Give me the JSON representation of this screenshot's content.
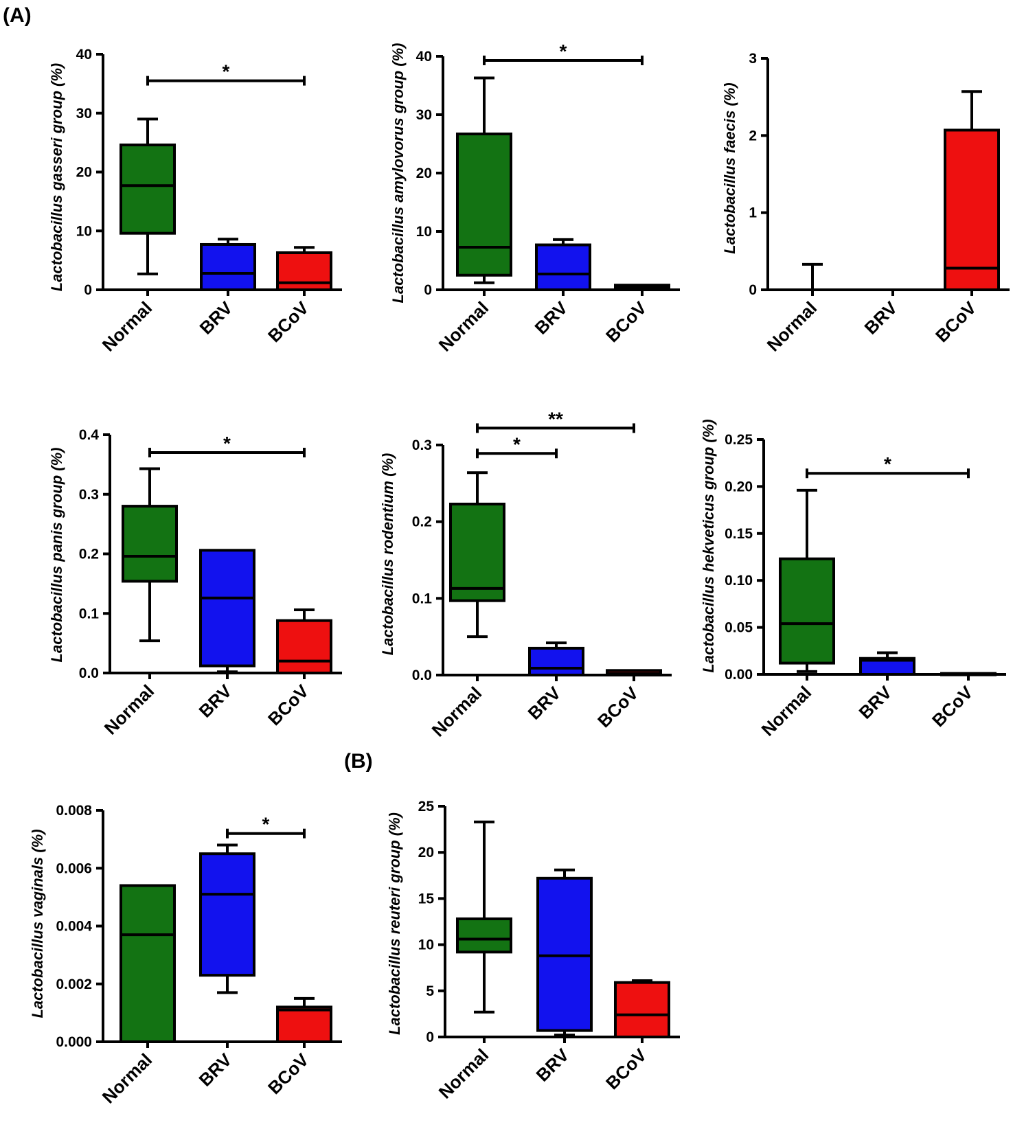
{
  "figure": {
    "panel_labels": [
      "(A)",
      "(B)"
    ]
  },
  "colors": {
    "Normal": "#137313",
    "BRV": "#1212ee",
    "BCoV": "#ee1010",
    "stroke": "#000000"
  },
  "chart_data": [
    {
      "type": "box",
      "ylabel": "Lactobacillus gasseri group (%)",
      "categories": [
        "Normal",
        "BRV",
        "BCoV"
      ],
      "ylim": [
        0,
        40
      ],
      "yticks": [
        "0",
        "10",
        "20",
        "30",
        "40"
      ],
      "ytick_values": [
        0,
        10,
        20,
        30,
        40
      ],
      "boxes": [
        {
          "min": 2.7,
          "q1": 9.6,
          "median": 17.7,
          "q3": 24.6,
          "max": 29.0
        },
        {
          "min": 0,
          "q1": 0,
          "median": 2.8,
          "q3": 7.7,
          "max": 8.6
        },
        {
          "min": 0,
          "q1": 0,
          "median": 1.2,
          "q3": 6.3,
          "max": 7.2
        }
      ],
      "significance": [
        {
          "from": 0,
          "to": 2,
          "label": "*",
          "y": 35.5
        }
      ]
    },
    {
      "type": "box",
      "ylabel": "Lactobacillus amylovorus group (%)",
      "categories": [
        "Normal",
        "BRV",
        "BCoV"
      ],
      "ylim": [
        0,
        40
      ],
      "yticks": [
        "0",
        "10",
        "20",
        "30",
        "40"
      ],
      "ytick_values": [
        0,
        10,
        20,
        30,
        40
      ],
      "boxes": [
        {
          "min": 1.2,
          "q1": 2.5,
          "median": 7.3,
          "q3": 26.7,
          "max": 36.3
        },
        {
          "min": 0,
          "q1": 0,
          "median": 2.7,
          "q3": 7.7,
          "max": 8.6
        },
        {
          "min": 0,
          "q1": 0,
          "median": 0.4,
          "q3": 0.8,
          "max": 0.9
        }
      ],
      "significance": [
        {
          "from": 0,
          "to": 2,
          "label": "*",
          "y": 39.3
        }
      ]
    },
    {
      "type": "box",
      "ylabel": "Lactobacillus faecis (%)",
      "categories": [
        "Normal",
        "BRV",
        "BCoV"
      ],
      "ylim": [
        0,
        3
      ],
      "yticks": [
        "0",
        "1",
        "2",
        "3"
      ],
      "ytick_values": [
        0,
        1,
        2,
        3
      ],
      "boxes": [
        {
          "min": 0,
          "q1": 0,
          "median": 0,
          "q3": 0,
          "max": 0.33
        },
        {
          "min": 0,
          "q1": 0,
          "median": 0,
          "q3": 0,
          "max": 0
        },
        {
          "min": 0,
          "q1": 0,
          "median": 0.28,
          "q3": 2.07,
          "max": 2.57
        }
      ],
      "significance": []
    },
    {
      "type": "box",
      "ylabel": "Lactobacillus panis group (%)",
      "categories": [
        "Normal",
        "BRV",
        "BCoV"
      ],
      "ylim": [
        0,
        0.4
      ],
      "yticks": [
        "0.0",
        "0.1",
        "0.2",
        "0.3",
        "0.4"
      ],
      "ytick_values": [
        0,
        0.1,
        0.2,
        0.3,
        0.4
      ],
      "boxes": [
        {
          "min": 0.054,
          "q1": 0.154,
          "median": 0.196,
          "q3": 0.28,
          "max": 0.343
        },
        {
          "min": 0.002,
          "q1": 0.012,
          "median": 0.126,
          "q3": 0.206,
          "max": 0.206
        },
        {
          "min": 0,
          "q1": 0,
          "median": 0.02,
          "q3": 0.088,
          "max": 0.106
        }
      ],
      "significance": [
        {
          "from": 0,
          "to": 2,
          "label": "*",
          "y": 0.37
        }
      ]
    },
    {
      "type": "box",
      "ylabel": "Lactobacillus rodentium (%)",
      "categories": [
        "Normal",
        "BRV",
        "BCoV"
      ],
      "ylim": [
        0,
        0.3
      ],
      "yticks": [
        "0.0",
        "0.1",
        "0.2",
        "0.3"
      ],
      "ytick_values": [
        0,
        0.1,
        0.2,
        0.3
      ],
      "boxes": [
        {
          "min": 0.05,
          "q1": 0.097,
          "median": 0.113,
          "q3": 0.223,
          "max": 0.264
        },
        {
          "min": 0,
          "q1": 0,
          "median": 0.009,
          "q3": 0.035,
          "max": 0.042
        },
        {
          "min": 0,
          "q1": 0,
          "median": 0.002,
          "q3": 0.006,
          "max": 0.006
        }
      ],
      "significance": [
        {
          "from": 0,
          "to": 1,
          "label": "*",
          "y": 0.289
        },
        {
          "from": 0,
          "to": 2,
          "label": "**",
          "y": 0.322
        }
      ]
    },
    {
      "type": "box",
      "ylabel": "Lactobacillus hekveticus group (%)",
      "categories": [
        "Normal",
        "BRV",
        "BCoV"
      ],
      "ylim": [
        0,
        0.25
      ],
      "yticks": [
        "0.00",
        "0.05",
        "0.10",
        "0.15",
        "0.20",
        "0.25"
      ],
      "ytick_values": [
        0,
        0.05,
        0.1,
        0.15,
        0.2,
        0.25
      ],
      "boxes": [
        {
          "min": 0.003,
          "q1": 0.012,
          "median": 0.054,
          "q3": 0.123,
          "max": 0.196
        },
        {
          "min": 0,
          "q1": 0,
          "median": 0.015,
          "q3": 0.017,
          "max": 0.023
        },
        {
          "min": 0,
          "q1": 0,
          "median": 0,
          "q3": 0.001,
          "max": 0.001
        }
      ],
      "significance": [
        {
          "from": 0,
          "to": 2,
          "label": "*",
          "y": 0.214
        }
      ]
    },
    {
      "type": "box",
      "ylabel": "Lactobacillus vaginals (%)",
      "categories": [
        "Normal",
        "BRV",
        "BCoV"
      ],
      "ylim": [
        0,
        0.008
      ],
      "yticks": [
        "0.000",
        "0.002",
        "0.004",
        "0.006",
        "0.008"
      ],
      "ytick_values": [
        0,
        0.002,
        0.004,
        0.006,
        0.008
      ],
      "boxes": [
        {
          "min": 0,
          "q1": 0,
          "median": 0.0037,
          "q3": 0.0054,
          "max": 0.0054
        },
        {
          "min": 0.0017,
          "q1": 0.0023,
          "median": 0.0051,
          "q3": 0.0065,
          "max": 0.0068
        },
        {
          "min": 0,
          "q1": 0,
          "median": 0.0011,
          "q3": 0.0012,
          "max": 0.0015
        }
      ],
      "significance": [
        {
          "from": 1,
          "to": 2,
          "label": "*",
          "y": 0.0072
        }
      ]
    },
    {
      "type": "box",
      "ylabel": "Lactobacillus reuteri group (%)",
      "categories": [
        "Normal",
        "BRV",
        "BCoV"
      ],
      "ylim": [
        0,
        25
      ],
      "yticks": [
        "0",
        "5",
        "10",
        "15",
        "20",
        "25"
      ],
      "ytick_values": [
        0,
        5,
        10,
        15,
        20,
        25
      ],
      "boxes": [
        {
          "min": 2.7,
          "q1": 9.2,
          "median": 10.6,
          "q3": 12.8,
          "max": 23.3
        },
        {
          "min": 0.2,
          "q1": 0.7,
          "median": 8.8,
          "q3": 17.2,
          "max": 18.1
        },
        {
          "min": 0,
          "q1": 0,
          "median": 2.4,
          "q3": 5.9,
          "max": 6.1
        }
      ],
      "significance": []
    }
  ]
}
